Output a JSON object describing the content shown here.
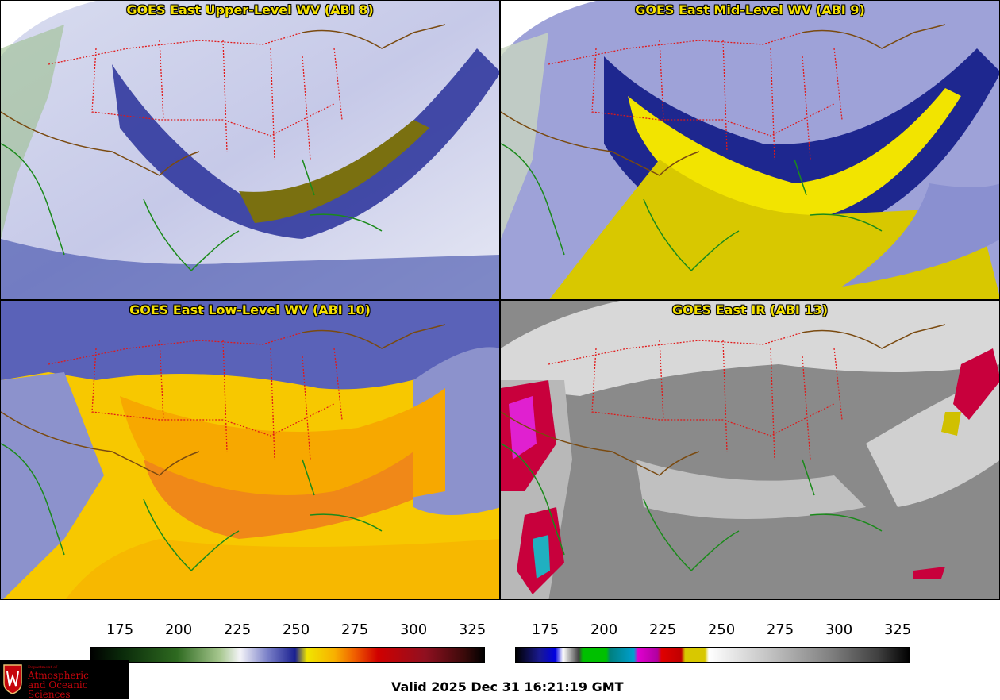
{
  "panels": [
    {
      "title": "GOES East Upper-Level WV (ABI 8)"
    },
    {
      "title": "GOES East Mid-Level WV (ABI 9)"
    },
    {
      "title": "GOES East Low-Level WV (ABI 10)"
    },
    {
      "title": "GOES East IR (ABI 13)"
    }
  ],
  "colorbars": {
    "wv": {
      "ticks": [
        "175",
        "200",
        "225",
        "250",
        "275",
        "300",
        "325"
      ]
    },
    "ir": {
      "ticks": [
        "175",
        "200",
        "225",
        "250",
        "275",
        "300",
        "325"
      ]
    }
  },
  "valid_time": "Valid 2025 Dec 31 16:21:19 GMT",
  "logo": {
    "line1": "Department of",
    "line2": "Atmospheric",
    "line3": "and Oceanic Sciences"
  },
  "colors": {
    "title": "#f5e100",
    "state_borders": "#e01818",
    "coastlines": "#1a8a1a",
    "country_borders": "#7a4a10"
  }
}
